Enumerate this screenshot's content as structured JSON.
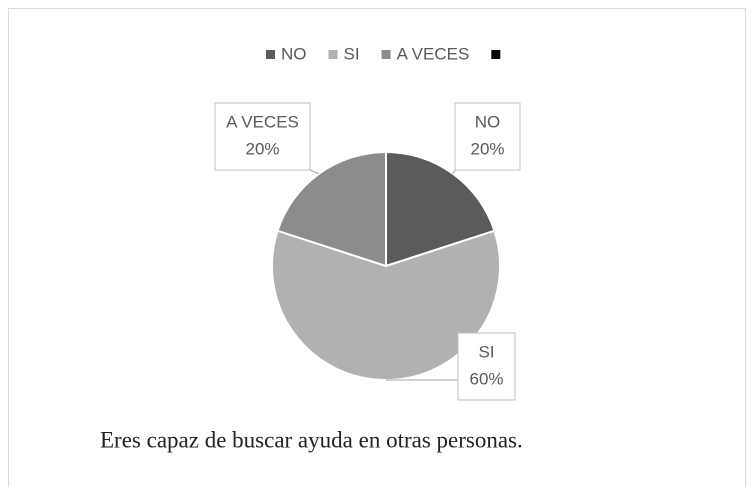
{
  "chart_data": {
    "type": "pie",
    "categories": [
      "NO",
      "SI",
      "A VECES",
      null
    ],
    "values": [
      20,
      60,
      20,
      null
    ],
    "value_labels": [
      "20%",
      "60%",
      "20%",
      null
    ],
    "colors": [
      "#5b5b5b",
      "#b1b1b1",
      "#8c8c8c",
      "#000000"
    ],
    "legend": "top"
  },
  "caption": "Eres capaz de buscar ayuda en otras personas."
}
